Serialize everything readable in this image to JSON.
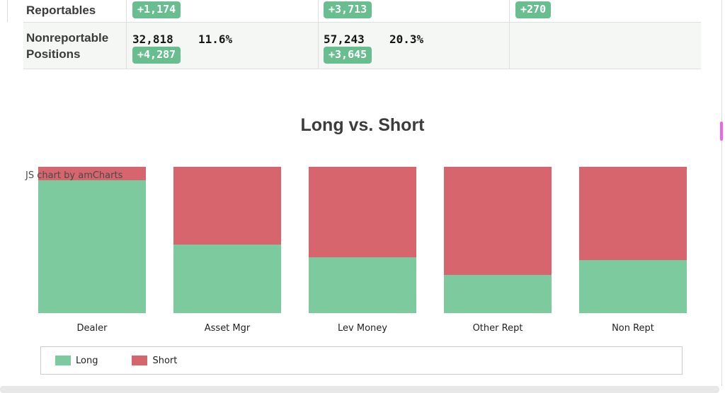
{
  "table": {
    "rows": [
      {
        "label": "Reportables",
        "cells": [
          {
            "value": "",
            "pct": "",
            "badge": "+1,174"
          },
          {
            "value": "",
            "pct": "",
            "badge": "+3,713"
          },
          {
            "value": "",
            "pct": "",
            "badge": "+270"
          }
        ]
      },
      {
        "label": "Nonreportable Positions",
        "cells": [
          {
            "value": "32,818",
            "pct": "11.6%",
            "badge": "+4,287"
          },
          {
            "value": "57,243",
            "pct": "20.3%",
            "badge": "+3,645"
          },
          {
            "value": "",
            "pct": "",
            "badge": ""
          }
        ]
      }
    ]
  },
  "chart": {
    "title": "Long vs. Short",
    "watermark": "JS chart by amCharts"
  },
  "chart_data": {
    "type": "bar",
    "stacked": "100%",
    "title": "Long vs. Short",
    "categories": [
      "Dealer",
      "Asset Mgr",
      "Lev Money",
      "Other Rept",
      "Non Rept"
    ],
    "series": [
      {
        "name": "Long",
        "color": "#7ECA9F",
        "values": [
          91,
          47,
          38,
          26,
          36
        ]
      },
      {
        "name": "Short",
        "color": "#D6656E",
        "values": [
          9,
          53,
          62,
          74,
          64
        ]
      }
    ],
    "xlabel": "",
    "ylabel": "",
    "ylim": [
      0,
      100
    ],
    "grid": false,
    "y_axis_visible": false,
    "legend_position": "bottom"
  },
  "legend": {
    "items": [
      {
        "label": "Long",
        "color": "#7ECA9F"
      },
      {
        "label": "Short",
        "color": "#D6656E"
      }
    ]
  },
  "colors": {
    "long": "#7ECA9F",
    "short": "#D6656E",
    "badge_bg": "#69BE8F",
    "row_alt_bg": "#F4F7F4",
    "border": "#DFDFDF",
    "title_text": "#3C3C3C",
    "scroll_thumb_pink": "#EE64EE",
    "scroll_track": "#E8E8E8"
  }
}
